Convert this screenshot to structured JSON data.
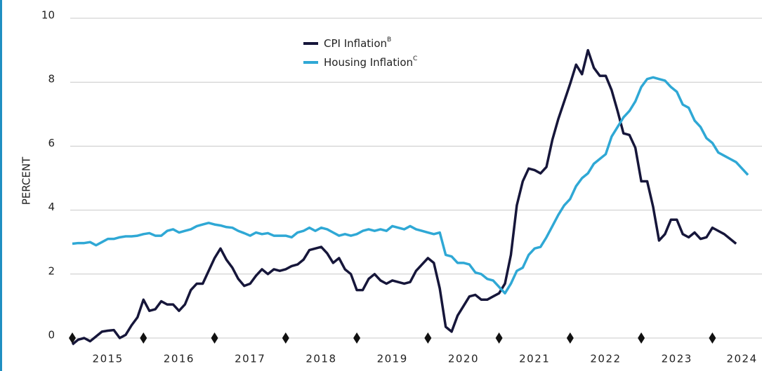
{
  "chart_data": {
    "type": "line",
    "y_label": "PERCENT",
    "categories": [
      null,
      null,
      null,
      null,
      null,
      null,
      "2015",
      null,
      null,
      null,
      null,
      null,
      null,
      null,
      null,
      null,
      null,
      null,
      "2016",
      null,
      null,
      null,
      null,
      null,
      null,
      null,
      null,
      null,
      null,
      null,
      "2017",
      null,
      null,
      null,
      null,
      null,
      null,
      null,
      null,
      null,
      null,
      null,
      "2018",
      null,
      null,
      null,
      null,
      null,
      null,
      null,
      null,
      null,
      null,
      null,
      "2019",
      null,
      null,
      null,
      null,
      null,
      null,
      null,
      null,
      null,
      null,
      null,
      "2020",
      null,
      null,
      null,
      null,
      null,
      null,
      null,
      null,
      null,
      null,
      null,
      "2021",
      null,
      null,
      null,
      null,
      null,
      null,
      null,
      null,
      null,
      null,
      null,
      "2022",
      null,
      null,
      null,
      null,
      null,
      null,
      null,
      null,
      null,
      null,
      null,
      "2023",
      null,
      null,
      null,
      null,
      null,
      null,
      null,
      null,
      null,
      null,
      "2024",
      null
    ],
    "series": [
      {
        "name": "CPI Inflation",
        "footnote": "B",
        "color": "#16163a",
        "values": [
          -0.2,
          -0.05,
          0.0,
          -0.1,
          0.05,
          0.2,
          0.23,
          0.25,
          0.0,
          0.1,
          0.4,
          0.65,
          1.2,
          0.85,
          0.9,
          1.15,
          1.05,
          1.05,
          0.85,
          1.05,
          1.5,
          1.7,
          1.7,
          2.1,
          2.5,
          2.8,
          2.45,
          2.2,
          1.85,
          1.63,
          1.7,
          1.95,
          2.15,
          2.0,
          2.15,
          2.1,
          2.15,
          2.25,
          2.3,
          2.45,
          2.75,
          2.8,
          2.85,
          2.65,
          2.35,
          2.5,
          2.15,
          2.0,
          1.5,
          1.5,
          1.85,
          2.0,
          1.8,
          1.7,
          1.8,
          1.75,
          1.7,
          1.75,
          2.1,
          2.3,
          2.5,
          2.35,
          1.55,
          0.35,
          0.2,
          0.7,
          1.0,
          1.3,
          1.35,
          1.2,
          1.2,
          1.3,
          1.4,
          1.7,
          2.6,
          4.15,
          4.9,
          5.3,
          5.25,
          5.15,
          5.35,
          6.2,
          6.85,
          7.4,
          7.95,
          8.55,
          8.25,
          9.0,
          8.45,
          8.2,
          8.2,
          7.75,
          7.1,
          6.4,
          6.35,
          5.95,
          4.9,
          4.9,
          4.1,
          3.05,
          3.25,
          3.7,
          3.7,
          3.25,
          3.15,
          3.3,
          3.1,
          3.15,
          3.45,
          3.35,
          3.25,
          3.1,
          2.95,
          null,
          null
        ]
      },
      {
        "name": "Housing Inflation",
        "footnote": "C",
        "color": "#2fa8d5",
        "values": [
          2.95,
          2.97,
          2.97,
          3.0,
          2.9,
          3.0,
          3.1,
          3.1,
          3.15,
          3.18,
          3.18,
          3.2,
          3.25,
          3.28,
          3.2,
          3.2,
          3.35,
          3.4,
          3.3,
          3.35,
          3.4,
          3.5,
          3.55,
          3.6,
          3.55,
          3.52,
          3.47,
          3.45,
          3.35,
          3.28,
          3.2,
          3.3,
          3.25,
          3.28,
          3.2,
          3.2,
          3.2,
          3.15,
          3.3,
          3.35,
          3.45,
          3.35,
          3.45,
          3.4,
          3.3,
          3.2,
          3.25,
          3.2,
          3.25,
          3.35,
          3.4,
          3.35,
          3.4,
          3.35,
          3.5,
          3.45,
          3.4,
          3.5,
          3.4,
          3.35,
          3.3,
          3.25,
          3.3,
          2.6,
          2.55,
          2.35,
          2.35,
          2.3,
          2.05,
          2.0,
          1.85,
          1.8,
          1.6,
          1.4,
          1.7,
          2.1,
          2.2,
          2.6,
          2.8,
          2.85,
          3.15,
          3.5,
          3.85,
          4.15,
          4.35,
          4.75,
          5.0,
          5.15,
          5.45,
          5.6,
          5.75,
          6.3,
          6.6,
          6.9,
          7.1,
          7.4,
          7.85,
          8.1,
          8.15,
          8.1,
          8.05,
          7.85,
          7.7,
          7.3,
          7.2,
          6.8,
          6.6,
          6.25,
          6.1,
          5.8,
          5.7,
          5.6,
          5.5,
          5.3,
          5.1
        ]
      }
    ],
    "ylim": [
      0,
      10
    ],
    "yticks": [
      0,
      2,
      4,
      6,
      8,
      10
    ],
    "grid": true
  }
}
